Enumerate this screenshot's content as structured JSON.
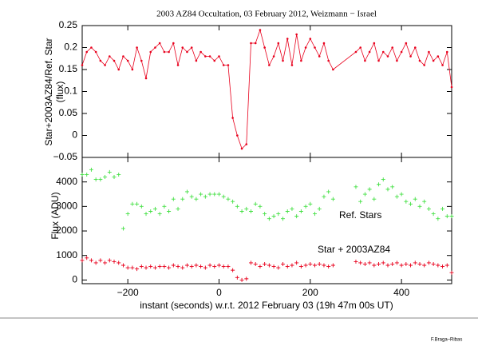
{
  "chart_data": [
    {
      "type": "line",
      "title": "2003 AZ84 Occultation, 03 February 2012,  Weizmann − Israel",
      "ylabel": [
        "Star+2003AZ84/Ref. Star",
        "(flux)"
      ],
      "color": "#e8001c",
      "x": [
        -300,
        -290,
        -280,
        -270,
        -260,
        -250,
        -240,
        -230,
        -220,
        -210,
        -200,
        -190,
        -180,
        -170,
        -160,
        -150,
        -140,
        -130,
        -120,
        -110,
        -100,
        -90,
        -80,
        -70,
        -60,
        -50,
        -40,
        -30,
        -20,
        -10,
        0,
        10,
        20,
        30,
        40,
        50,
        60,
        70,
        80,
        90,
        100,
        110,
        120,
        130,
        140,
        150,
        160,
        170,
        180,
        190,
        200,
        210,
        220,
        230,
        240,
        250,
        300,
        310,
        320,
        330,
        340,
        350,
        360,
        370,
        380,
        390,
        400,
        410,
        420,
        430,
        440,
        450,
        460,
        470,
        480,
        490,
        500,
        510
      ],
      "values": [
        0.16,
        0.19,
        0.2,
        0.19,
        0.17,
        0.16,
        0.18,
        0.17,
        0.15,
        0.18,
        0.17,
        0.15,
        0.2,
        0.17,
        0.13,
        0.19,
        0.2,
        0.21,
        0.19,
        0.19,
        0.21,
        0.16,
        0.2,
        0.19,
        0.2,
        0.17,
        0.19,
        0.18,
        0.18,
        0.17,
        0.18,
        0.16,
        0.16,
        0.04,
        0.0,
        -0.03,
        -0.02,
        0.21,
        0.21,
        0.24,
        0.2,
        0.16,
        0.18,
        0.21,
        0.17,
        0.22,
        0.16,
        0.23,
        0.17,
        0.2,
        0.22,
        0.2,
        0.18,
        0.21,
        0.17,
        0.15,
        0.19,
        0.2,
        0.17,
        0.19,
        0.21,
        0.17,
        0.19,
        0.18,
        0.2,
        0.17,
        0.19,
        0.21,
        0.18,
        0.2,
        0.17,
        0.16,
        0.19,
        0.17,
        0.18,
        0.16,
        0.19,
        0.11
      ],
      "xlim": [
        -300,
        510
      ],
      "xticks": [
        -200,
        0,
        200,
        400
      ],
      "ylim": [
        -0.05,
        0.25
      ],
      "yticks": [
        {
          "value": -0.05,
          "label": "−0.05"
        },
        0,
        0.05,
        0.1,
        0.15,
        0.2,
        0.25
      ]
    },
    {
      "type": "scatter",
      "xlabel": "instant (seconds) w.r.t. 2012 February 03 (19h 47m 00s UT)",
      "ylabel": "Flux (ADU)",
      "x": [
        -300,
        -290,
        -280,
        -270,
        -260,
        -250,
        -240,
        -230,
        -220,
        -210,
        -200,
        -190,
        -180,
        -170,
        -160,
        -150,
        -140,
        -130,
        -120,
        -110,
        -100,
        -90,
        -80,
        -70,
        -60,
        -50,
        -40,
        -30,
        -20,
        -10,
        0,
        10,
        20,
        30,
        40,
        50,
        60,
        70,
        80,
        90,
        100,
        110,
        120,
        130,
        140,
        150,
        160,
        170,
        180,
        190,
        200,
        210,
        220,
        230,
        240,
        250,
        300,
        310,
        320,
        330,
        340,
        350,
        360,
        370,
        380,
        390,
        400,
        410,
        420,
        430,
        440,
        450,
        460,
        470,
        480,
        490,
        500,
        510
      ],
      "series": [
        {
          "name": "Ref. Stars",
          "color": "#44e044",
          "values": [
            4300,
            4300,
            4500,
            4100,
            4100,
            4200,
            4400,
            4200,
            4300,
            2100,
            2700,
            3100,
            3100,
            3000,
            2700,
            2800,
            2900,
            2700,
            3000,
            2800,
            3300,
            2900,
            3300,
            3600,
            3400,
            3300,
            3500,
            3400,
            3500,
            3500,
            3500,
            3400,
            3300,
            3200,
            3000,
            2800,
            2900,
            2800,
            3100,
            3000,
            2700,
            2500,
            2600,
            2700,
            2500,
            2800,
            2900,
            2600,
            2800,
            3000,
            3100,
            2700,
            2900,
            3400,
            3600,
            3300,
            3800,
            3200,
            3500,
            3700,
            3300,
            3900,
            4100,
            3700,
            3800,
            3400,
            3500,
            3200,
            3100,
            3300,
            3000,
            3200,
            2900,
            2700,
            2500,
            2900,
            2600,
            2600
          ]
        },
        {
          "name": "Star + 2003AZ84",
          "color": "#e8001c",
          "values": [
            800,
            900,
            800,
            700,
            800,
            700,
            800,
            750,
            700,
            600,
            500,
            500,
            450,
            550,
            500,
            550,
            500,
            550,
            550,
            500,
            600,
            550,
            500,
            600,
            550,
            600,
            550,
            500,
            600,
            550,
            600,
            550,
            550,
            400,
            100,
            0,
            50,
            700,
            650,
            550,
            650,
            600,
            550,
            500,
            650,
            550,
            600,
            700,
            550,
            600,
            650,
            600,
            650,
            600,
            550,
            600,
            750,
            700,
            650,
            700,
            600,
            650,
            700,
            600,
            650,
            700,
            600,
            650,
            600,
            700,
            650,
            600,
            700,
            650,
            600,
            550,
            600,
            300
          ]
        }
      ],
      "xlim": [
        -300,
        510
      ],
      "xticks": [
        {
          "value": -200,
          "label": "−200"
        },
        0,
        200,
        400
      ],
      "ylim": [
        -150,
        5000
      ],
      "yticks": [
        0,
        1000,
        2000,
        3000,
        4000
      ]
    }
  ],
  "credit": "F.Braga–Ribas"
}
